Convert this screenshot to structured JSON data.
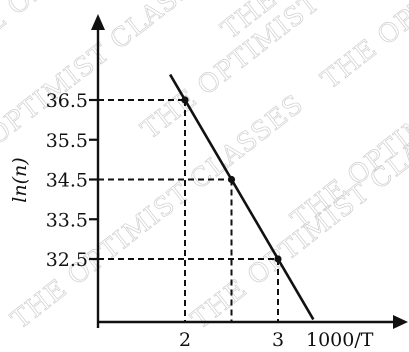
{
  "watermark": "THE OPTIMIST CLASSES",
  "chart_data": {
    "type": "line",
    "xlabel": "1000/T",
    "ylabel": "ln(n)",
    "x_ticks": [
      2,
      3
    ],
    "x_tick_labels": [
      "2",
      "3"
    ],
    "y_ticks": [
      32.5,
      33.5,
      34.5,
      35.5,
      36.5
    ],
    "y_tick_labels": [
      "32.5",
      "33.5",
      "34.5",
      "35.5",
      "36.5"
    ],
    "xlim": [
      0,
      4.5
    ],
    "ylim": [
      31.0,
      38.6
    ],
    "grid": false,
    "series": [
      {
        "x": [
          2.0,
          2.5,
          3.0
        ],
        "y": [
          36.5,
          34.5,
          32.5
        ],
        "points": [
          {
            "x": 2.0,
            "y": 36.5
          },
          {
            "x": 2.5,
            "y": 34.5
          },
          {
            "x": 3.0,
            "y": 32.5
          }
        ],
        "line_extent_x": [
          1.84,
          3.38
        ]
      }
    ]
  }
}
